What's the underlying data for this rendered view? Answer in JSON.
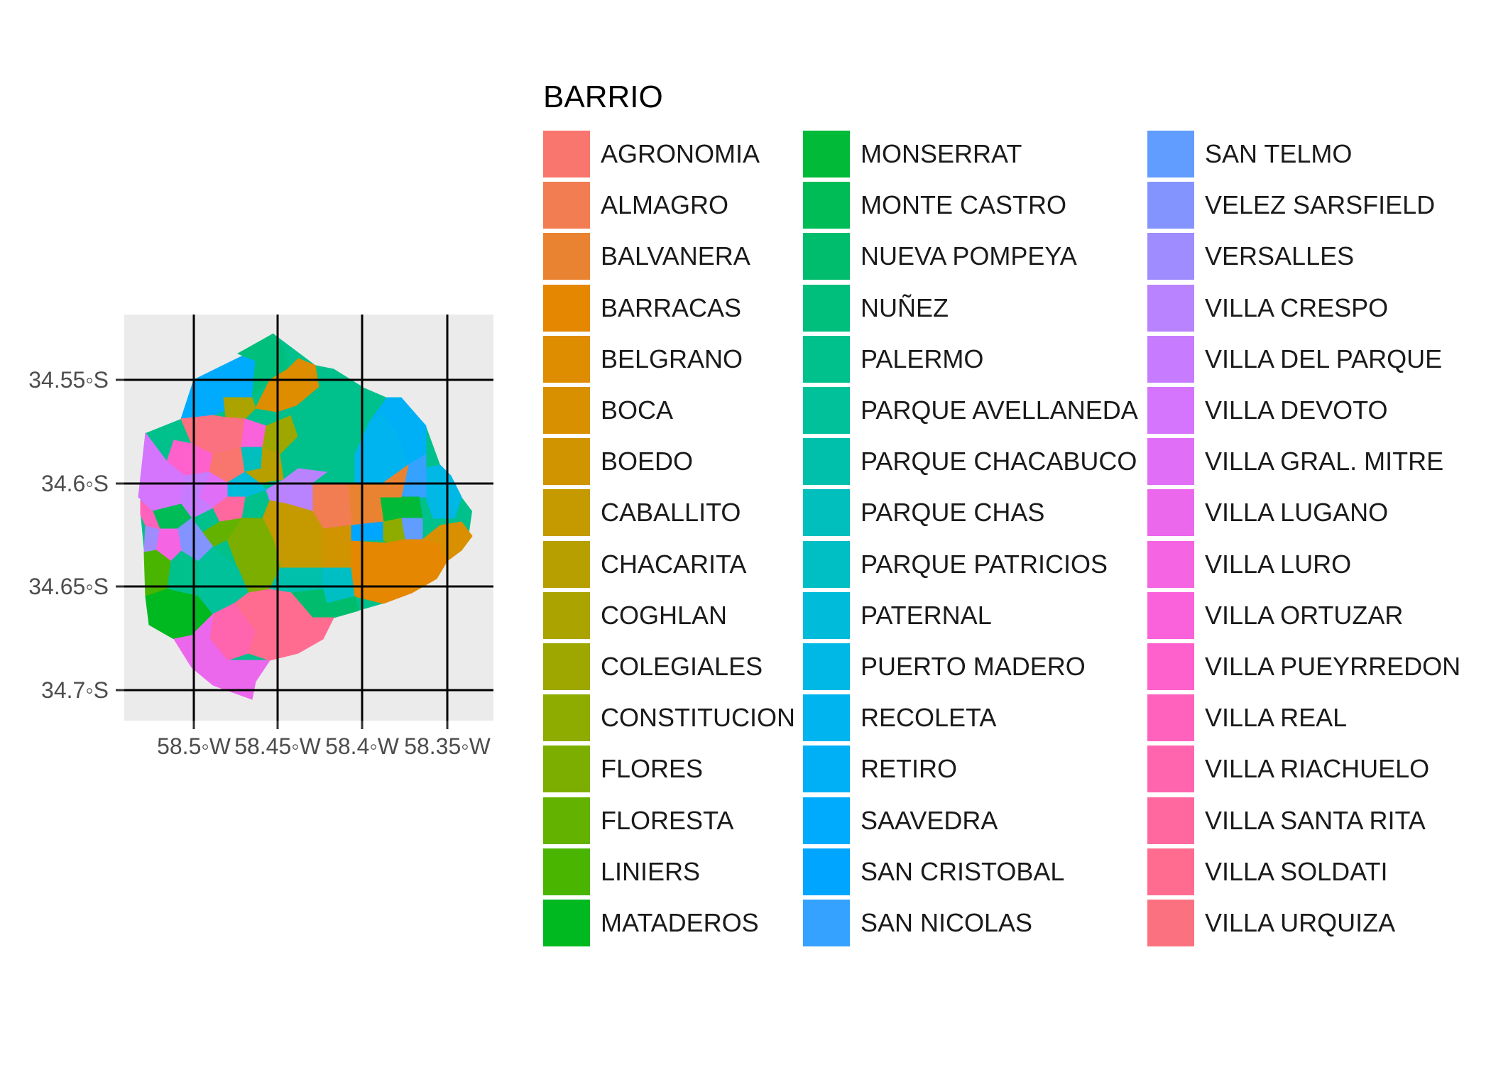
{
  "map": {
    "projection_note": "",
    "x_ticks": [
      "58.5◦W",
      "58.45◦W",
      "58.4◦W",
      "58.35◦W"
    ],
    "x_tick_values": [
      -58.5,
      -58.45,
      -58.4,
      -58.35
    ],
    "y_ticks": [
      "34.55◦S",
      "34.6◦S",
      "34.65◦S",
      "34.7◦S"
    ],
    "y_tick_values": [
      -34.55,
      -34.6,
      -34.65,
      -34.7
    ],
    "panel_background": "#ebebeb",
    "grid_color": "#000000"
  },
  "legend": {
    "title": "BARRIO",
    "columns": [
      [
        {
          "label": "AGRONOMIA",
          "color": "#F8766D"
        },
        {
          "label": "ALMAGRO",
          "color": "#F27D52"
        },
        {
          "label": "BALVANERA",
          "color": "#EA8331"
        },
        {
          "label": "BARRACAS",
          "color": "#E58700"
        },
        {
          "label": "BELGRANO",
          "color": "#DE8C00"
        },
        {
          "label": "BOCA",
          "color": "#D89000"
        },
        {
          "label": "BOEDO",
          "color": "#CF9400"
        },
        {
          "label": "CABALLITO",
          "color": "#C49A00"
        },
        {
          "label": "CHACARITA",
          "color": "#B79F00"
        },
        {
          "label": "COGHLAN",
          "color": "#ABA300"
        },
        {
          "label": "COLEGIALES",
          "color": "#9DA700"
        },
        {
          "label": "CONSTITUCION",
          "color": "#8EAB00"
        },
        {
          "label": "FLORES",
          "color": "#7CAE00"
        },
        {
          "label": "FLORESTA",
          "color": "#64B200"
        },
        {
          "label": "LINIERS",
          "color": "#49B500"
        },
        {
          "label": "MATADEROS",
          "color": "#00B81F"
        }
      ],
      [
        {
          "label": "MONSERRAT",
          "color": "#00BA38"
        },
        {
          "label": "MONTE CASTRO",
          "color": "#00BC56"
        },
        {
          "label": "NUEVA POMPEYA",
          "color": "#00BD6D"
        },
        {
          "label": "NUÑEZ",
          "color": "#00BF7D"
        },
        {
          "label": "PALERMO",
          "color": "#00C08B"
        },
        {
          "label": "PARQUE AVELLANEDA",
          "color": "#00C19A"
        },
        {
          "label": "PARQUE CHACABUCO",
          "color": "#00C0AB"
        },
        {
          "label": "PARQUE CHAS",
          "color": "#00BFBC"
        },
        {
          "label": "PARQUE PATRICIOS",
          "color": "#00BFC4"
        },
        {
          "label": "PATERNAL",
          "color": "#00BBDA"
        },
        {
          "label": "PUERTO MADERO",
          "color": "#00B8E5"
        },
        {
          "label": "RECOLETA",
          "color": "#00B4EF"
        },
        {
          "label": "RETIRO",
          "color": "#00B0F6"
        },
        {
          "label": "SAAVEDRA",
          "color": "#00ABFD"
        },
        {
          "label": "SAN CRISTOBAL",
          "color": "#00A5FF"
        },
        {
          "label": "SAN NICOLAS",
          "color": "#35A2FF"
        }
      ],
      [
        {
          "label": "SAN TELMO",
          "color": "#619CFF"
        },
        {
          "label": "VELEZ SARSFIELD",
          "color": "#8494FF"
        },
        {
          "label": "VERSALLES",
          "color": "#9F8CFF"
        },
        {
          "label": "VILLA CRESPO",
          "color": "#B983FF"
        },
        {
          "label": "VILLA DEL PARQUE",
          "color": "#C77CFF"
        },
        {
          "label": "VILLA DEVOTO",
          "color": "#D575FE"
        },
        {
          "label": "VILLA GRAL. MITRE",
          "color": "#E16EF6"
        },
        {
          "label": "VILLA LUGANO",
          "color": "#EB68ED"
        },
        {
          "label": "VILLA LURO",
          "color": "#F564E3"
        },
        {
          "label": "VILLA ORTUZAR",
          "color": "#FA62DB"
        },
        {
          "label": "VILLA PUEYRREDON",
          "color": "#FF61CC"
        },
        {
          "label": "VILLA REAL",
          "color": "#FF62BC"
        },
        {
          "label": "VILLA RIACHUELO",
          "color": "#FF65AE"
        },
        {
          "label": "VILLA SANTA RITA",
          "color": "#FF689F"
        },
        {
          "label": "VILLA SOLDATI",
          "color": "#FF6C90"
        },
        {
          "label": "VILLA URQUIZA",
          "color": "#FC717F"
        }
      ]
    ]
  }
}
